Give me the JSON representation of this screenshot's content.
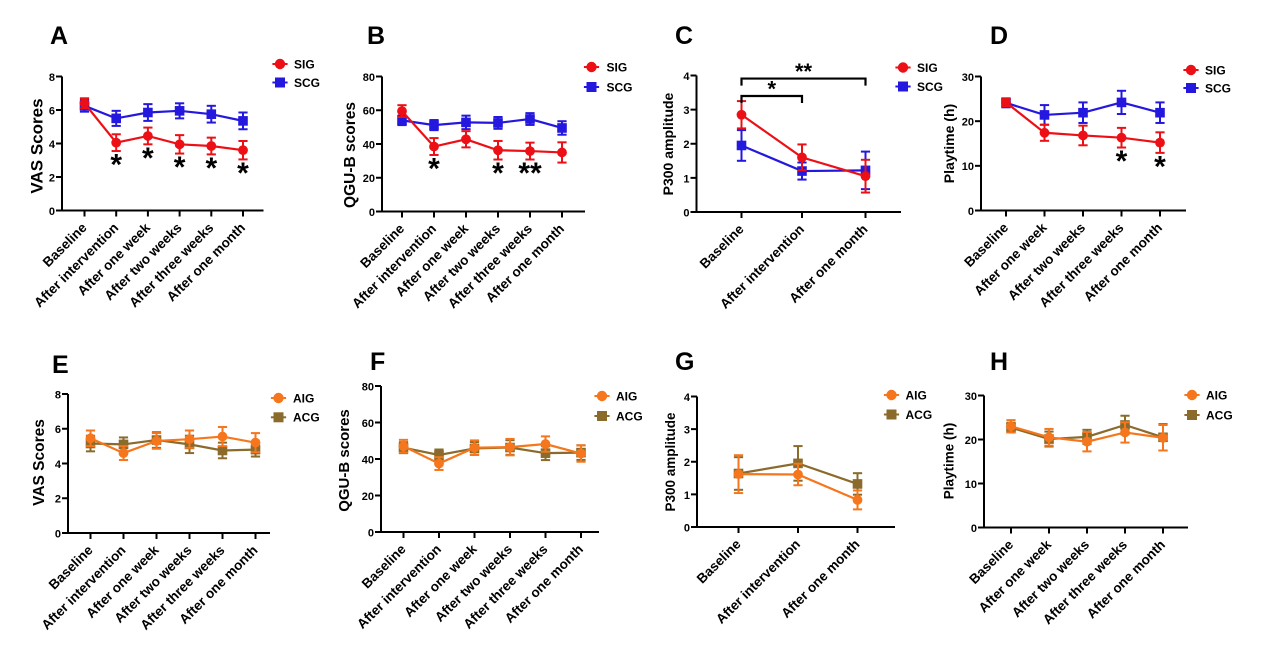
{
  "figure": {
    "background": "#ffffff",
    "text_color": "#000000"
  },
  "chart_data": [
    {
      "type": "line",
      "panel_label": "A",
      "ylabel": "VAS Scores",
      "ylim": [
        0,
        8
      ],
      "yticks": [
        0,
        2,
        4,
        6,
        8
      ],
      "categories": [
        "Baseline",
        "After intervention",
        "After one week",
        "After two weeks",
        "After three weeks",
        "After one month"
      ],
      "legend_position": "top-right",
      "grid": false,
      "series": [
        {
          "name": "SIG",
          "color": "#EC1016",
          "marker": "circle",
          "values": [
            6.4,
            4.05,
            4.45,
            3.95,
            3.85,
            3.6
          ],
          "errors": [
            0.3,
            0.5,
            0.5,
            0.55,
            0.5,
            0.55
          ]
        },
        {
          "name": "SCG",
          "color": "#2418DE",
          "marker": "square",
          "values": [
            6.25,
            5.5,
            5.85,
            5.95,
            5.75,
            5.35
          ],
          "errors": [
            0.35,
            0.45,
            0.5,
            0.45,
            0.5,
            0.5
          ]
        }
      ],
      "sig_marks": [
        {
          "index": 1,
          "text": "*"
        },
        {
          "index": 2,
          "text": "*"
        },
        {
          "index": 3,
          "text": "*"
        },
        {
          "index": 4,
          "text": "*"
        },
        {
          "index": 5,
          "text": "*"
        }
      ],
      "brackets": []
    },
    {
      "type": "line",
      "panel_label": "B",
      "ylabel": "QGU-B scores",
      "ylim": [
        0,
        80
      ],
      "yticks": [
        0,
        20,
        40,
        60,
        80
      ],
      "categories": [
        "Baseline",
        "After intervention",
        "After one week",
        "After two weeks",
        "After three weeks",
        "After one month"
      ],
      "legend_position": "top-right",
      "grid": false,
      "series": [
        {
          "name": "SIG",
          "color": "#EC1016",
          "marker": "circle",
          "values": [
            59.5,
            38.5,
            42.8,
            36.3,
            35.8,
            35.0
          ],
          "errors": [
            3.5,
            5.0,
            4.8,
            5.5,
            5.0,
            6.0
          ]
        },
        {
          "name": "SCG",
          "color": "#2418DE",
          "marker": "square",
          "values": [
            54.0,
            51.2,
            52.8,
            52.5,
            54.8,
            49.5
          ],
          "errors": [
            2.8,
            3.0,
            4.0,
            3.5,
            3.5,
            4.0
          ]
        }
      ],
      "sig_marks": [
        {
          "index": 1,
          "text": "*"
        },
        {
          "index": 3,
          "text": "*"
        },
        {
          "index": 4,
          "text": "**"
        }
      ],
      "brackets": []
    },
    {
      "type": "line",
      "panel_label": "C",
      "ylabel": "P300 amplitude",
      "ylim": [
        0,
        4
      ],
      "yticks": [
        0,
        1,
        2,
        3,
        4
      ],
      "categories": [
        "Baseline",
        "After intervention",
        "After one month"
      ],
      "legend_position": "top-right",
      "grid": false,
      "series": [
        {
          "name": "SIG",
          "color": "#EC1016",
          "marker": "circle",
          "values": [
            2.85,
            1.6,
            1.05
          ],
          "errors": [
            0.4,
            0.38,
            0.48
          ]
        },
        {
          "name": "SCG",
          "color": "#2418DE",
          "marker": "square",
          "values": [
            1.95,
            1.2,
            1.22
          ],
          "errors": [
            0.45,
            0.25,
            0.55
          ]
        }
      ],
      "sig_marks": [],
      "brackets": [
        {
          "from": 0,
          "to": 1,
          "y": 3.4,
          "text": "*"
        },
        {
          "from": 0,
          "to": 2,
          "y": 3.91,
          "text": "**"
        }
      ]
    },
    {
      "type": "line",
      "panel_label": "D",
      "ylabel": "Playtime (h)",
      "ylim": [
        0,
        30
      ],
      "yticks": [
        0,
        10,
        20,
        30
      ],
      "categories": [
        "Baseline",
        "After one week",
        "After two weeks",
        "After three weeks",
        "After one month"
      ],
      "legend_position": "top-right",
      "grid": false,
      "series": [
        {
          "name": "SIG",
          "color": "#EC1016",
          "marker": "circle",
          "values": [
            24.2,
            17.4,
            16.8,
            16.3,
            15.2
          ],
          "errors": [
            0.9,
            1.8,
            2.2,
            2.2,
            2.3
          ]
        },
        {
          "name": "SCG",
          "color": "#2418DE",
          "marker": "square",
          "values": [
            24.1,
            21.4,
            21.9,
            24.2,
            21.9
          ],
          "errors": [
            1.0,
            2.2,
            2.3,
            2.6,
            2.3
          ]
        }
      ],
      "sig_marks": [
        {
          "index": 3,
          "text": "*"
        },
        {
          "index": 4,
          "text": "*"
        }
      ],
      "brackets": []
    },
    {
      "type": "line",
      "panel_label": "E",
      "ylabel": "VAS Scores",
      "ylim": [
        0,
        8
      ],
      "yticks": [
        0,
        2,
        4,
        6,
        8
      ],
      "categories": [
        "Baseline",
        "After intervention",
        "After one week",
        "After two weeks",
        "After three weeks",
        "After one month"
      ],
      "legend_position": "top-right",
      "grid": false,
      "series": [
        {
          "name": "AIG",
          "color": "#F5761C",
          "marker": "circle",
          "values": [
            5.45,
            4.6,
            5.3,
            5.4,
            5.55,
            5.2
          ],
          "errors": [
            0.45,
            0.4,
            0.45,
            0.5,
            0.55,
            0.55
          ]
        },
        {
          "name": "ACG",
          "color": "#8A6B2B",
          "marker": "square",
          "values": [
            5.15,
            5.1,
            5.35,
            5.1,
            4.75,
            4.8
          ],
          "errors": [
            0.45,
            0.4,
            0.45,
            0.5,
            0.45,
            0.4
          ]
        }
      ],
      "sig_marks": [],
      "brackets": []
    },
    {
      "type": "line",
      "panel_label": "F",
      "ylabel": "QGU-B scores",
      "ylim": [
        0,
        80
      ],
      "yticks": [
        0,
        20,
        40,
        60,
        80
      ],
      "categories": [
        "Baseline",
        "After intervention",
        "After one week",
        "After two weeks",
        "After three weeks",
        "After one month"
      ],
      "legend_position": "top-right",
      "grid": false,
      "series": [
        {
          "name": "AIG",
          "color": "#F5761C",
          "marker": "circle",
          "values": [
            47.0,
            37.5,
            46.2,
            46.5,
            48.2,
            43.0
          ],
          "errors": [
            3.5,
            3.5,
            4.0,
            4.5,
            4.2,
            4.5
          ]
        },
        {
          "name": "ACG",
          "color": "#8A6B2B",
          "marker": "square",
          "values": [
            46.2,
            42.2,
            45.8,
            46.3,
            43.2,
            43.5
          ],
          "errors": [
            3.0,
            3.0,
            3.5,
            4.0,
            3.8,
            4.0
          ]
        }
      ],
      "sig_marks": [],
      "brackets": []
    },
    {
      "type": "line",
      "panel_label": "G",
      "ylabel": "P300 amplitude",
      "ylim": [
        0,
        4
      ],
      "yticks": [
        0,
        1,
        2,
        3,
        4
      ],
      "categories": [
        "Baseline",
        "After intervention",
        "After one month"
      ],
      "legend_position": "top-right",
      "grid": false,
      "series": [
        {
          "name": "AIG",
          "color": "#F5761C",
          "marker": "circle",
          "values": [
            1.62,
            1.61,
            0.83
          ],
          "errors": [
            0.58,
            0.33,
            0.29
          ]
        },
        {
          "name": "ACG",
          "color": "#8A6B2B",
          "marker": "square",
          "values": [
            1.64,
            1.95,
            1.32
          ],
          "errors": [
            0.5,
            0.53,
            0.33
          ]
        }
      ],
      "sig_marks": [],
      "brackets": []
    },
    {
      "type": "line",
      "panel_label": "H",
      "ylabel": "Playtime (h)",
      "ylim": [
        0,
        30
      ],
      "yticks": [
        0,
        10,
        20,
        30
      ],
      "categories": [
        "Baseline",
        "After one week",
        "After two weeks",
        "After three weeks",
        "After one month"
      ],
      "legend_position": "top-right",
      "grid": false,
      "series": [
        {
          "name": "AIG",
          "color": "#F5761C",
          "marker": "circle",
          "values": [
            23.0,
            20.5,
            19.5,
            21.6,
            20.4
          ],
          "errors": [
            1.4,
            1.9,
            2.2,
            2.3,
            2.9
          ]
        },
        {
          "name": "ACG",
          "color": "#8A6B2B",
          "marker": "square",
          "values": [
            22.7,
            20.1,
            20.6,
            23.3,
            20.5
          ],
          "errors": [
            1.1,
            1.7,
            1.6,
            2.1,
            3.0
          ]
        }
      ],
      "sig_marks": [],
      "brackets": []
    }
  ]
}
